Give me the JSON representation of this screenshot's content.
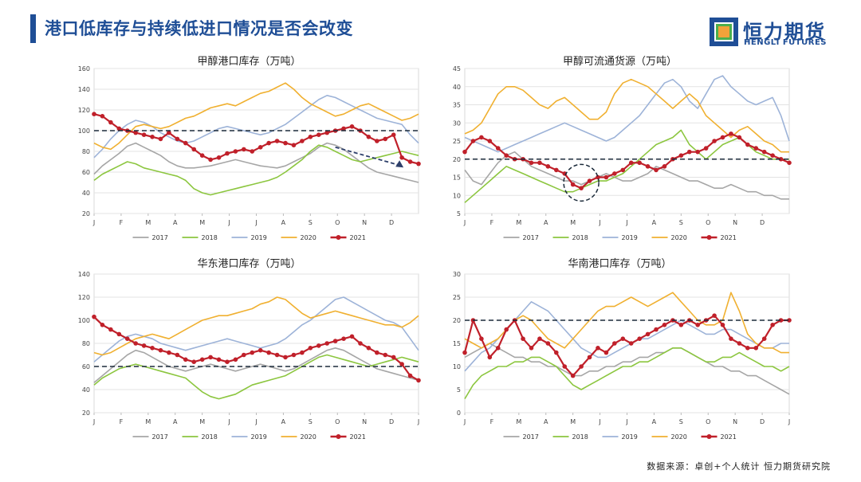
{
  "header": {
    "title": "港口低库存与持续低进口情况是否会改变"
  },
  "logo": {
    "cn": "恒力期货",
    "en": "HENGLI FUTURES",
    "colors": [
      "#f2a23a",
      "#4cae4c",
      "#1f4e96"
    ]
  },
  "footer": {
    "source": "数据来源：卓创+个人统计  恒力期货研究院"
  },
  "series_colors": {
    "2017": "#a6a6a6",
    "2018": "#8cc63f",
    "2019": "#9db3d8",
    "2020": "#f0b030",
    "2021": "#c0202a"
  },
  "chart_data": [
    {
      "type": "line",
      "title": "甲醇港口库存（万吨）",
      "ylim": [
        20,
        160
      ],
      "yticks": [
        20,
        40,
        60,
        80,
        100,
        120,
        140,
        160
      ],
      "xticks": [
        "J",
        "F",
        "M",
        "A",
        "M",
        "J",
        "J",
        "A",
        "S",
        "O",
        "N",
        "D"
      ],
      "ref_line": 100,
      "annotation": "dashed-arrow-down",
      "series": [
        {
          "name": "2017",
          "values": [
            58,
            66,
            72,
            78,
            85,
            88,
            84,
            80,
            76,
            70,
            66,
            64,
            64,
            65,
            66,
            68,
            70,
            72,
            70,
            68,
            66,
            65,
            64,
            66,
            70,
            74,
            78,
            84,
            88,
            86,
            82,
            76,
            70,
            64,
            60,
            58,
            56,
            54,
            52,
            50
          ]
        },
        {
          "name": "2018",
          "values": [
            52,
            58,
            62,
            66,
            70,
            68,
            64,
            62,
            60,
            58,
            56,
            52,
            44,
            40,
            38,
            40,
            42,
            44,
            46,
            48,
            50,
            52,
            55,
            60,
            66,
            72,
            80,
            86,
            84,
            80,
            76,
            72,
            70,
            72,
            74,
            76,
            78,
            80,
            78,
            76
          ]
        },
        {
          "name": "2019",
          "values": [
            74,
            82,
            92,
            100,
            106,
            110,
            108,
            104,
            98,
            94,
            90,
            88,
            90,
            94,
            98,
            102,
            104,
            102,
            100,
            98,
            96,
            98,
            102,
            106,
            112,
            118,
            124,
            130,
            134,
            132,
            128,
            124,
            120,
            116,
            112,
            110,
            108,
            106,
            96,
            88
          ]
        },
        {
          "name": "2020",
          "values": [
            88,
            84,
            82,
            88,
            96,
            104,
            106,
            104,
            102,
            104,
            108,
            112,
            114,
            118,
            122,
            124,
            126,
            124,
            128,
            132,
            136,
            138,
            142,
            146,
            140,
            132,
            126,
            122,
            118,
            114,
            116,
            120,
            124,
            126,
            122,
            118,
            114,
            110,
            112,
            116
          ]
        },
        {
          "name": "2021",
          "marker": true,
          "values": [
            116,
            114,
            108,
            102,
            100,
            98,
            96,
            94,
            92,
            98,
            92,
            88,
            82,
            76,
            72,
            74,
            78,
            80,
            82,
            80,
            84,
            88,
            90,
            88,
            86,
            90,
            94,
            96,
            98,
            100,
            102,
            104,
            100,
            94,
            90,
            92,
            96,
            74,
            70,
            68
          ]
        }
      ]
    },
    {
      "type": "line",
      "title": "甲醇可流通货源（万吨）",
      "ylim": [
        5,
        45
      ],
      "yticks": [
        5,
        10,
        15,
        20,
        25,
        30,
        35,
        40,
        45
      ],
      "xticks": [
        "J",
        "F",
        "M",
        "A",
        "M",
        "J",
        "J",
        "A",
        "S",
        "O",
        "N",
        "D"
      ],
      "ref_line": 20,
      "annotation": "dashed-circle",
      "series": [
        {
          "name": "2017",
          "values": [
            17,
            14,
            13,
            16,
            19,
            21,
            22,
            20,
            18,
            17,
            16,
            15,
            14,
            14,
            13,
            14,
            15,
            16,
            15,
            14,
            14,
            15,
            16,
            18,
            17,
            16,
            15,
            14,
            14,
            13,
            12,
            12,
            13,
            12,
            11,
            11,
            10,
            10,
            9,
            9
          ]
        },
        {
          "name": "2018",
          "values": [
            8,
            10,
            12,
            14,
            16,
            18,
            17,
            16,
            15,
            14,
            13,
            12,
            11,
            11,
            12,
            13,
            14,
            14,
            15,
            16,
            18,
            20,
            22,
            24,
            25,
            26,
            28,
            24,
            22,
            20,
            22,
            24,
            25,
            26,
            24,
            22,
            21,
            20,
            20,
            20
          ]
        },
        {
          "name": "2019",
          "values": [
            26,
            25,
            24,
            23,
            22,
            23,
            24,
            25,
            26,
            27,
            28,
            29,
            30,
            29,
            28,
            27,
            26,
            25,
            26,
            28,
            30,
            32,
            35,
            38,
            41,
            42,
            40,
            36,
            34,
            38,
            42,
            43,
            40,
            38,
            36,
            35,
            36,
            37,
            32,
            25
          ]
        },
        {
          "name": "2020",
          "values": [
            27,
            28,
            30,
            34,
            38,
            40,
            40,
            39,
            37,
            35,
            34,
            36,
            37,
            35,
            33,
            31,
            31,
            33,
            38,
            41,
            42,
            41,
            40,
            38,
            36,
            34,
            36,
            38,
            36,
            32,
            30,
            28,
            26,
            28,
            29,
            27,
            25,
            24,
            22,
            22
          ]
        },
        {
          "name": "2021",
          "marker": true,
          "values": [
            22,
            25,
            26,
            25,
            23,
            21,
            20,
            20,
            19,
            19,
            18,
            17,
            16,
            13,
            12,
            14,
            15,
            15,
            16,
            17,
            19,
            19,
            18,
            17,
            18,
            20,
            21,
            22,
            22,
            23,
            25,
            26,
            27,
            26,
            24,
            23,
            22,
            21,
            20,
            19
          ]
        }
      ]
    },
    {
      "type": "line",
      "title": "华东港口库存（万吨）",
      "ylim": [
        20,
        140
      ],
      "yticks": [
        20,
        40,
        60,
        80,
        100,
        120,
        140
      ],
      "xticks": [
        "J",
        "F",
        "M",
        "A",
        "M",
        "J",
        "J",
        "A",
        "S",
        "O",
        "N",
        "D",
        "J"
      ],
      "ref_line": 60,
      "series": [
        {
          "name": "2017",
          "values": [
            46,
            52,
            58,
            64,
            70,
            74,
            72,
            68,
            64,
            60,
            58,
            56,
            58,
            60,
            62,
            60,
            58,
            56,
            58,
            60,
            62,
            60,
            58,
            56,
            58,
            62,
            66,
            70,
            74,
            76,
            74,
            70,
            66,
            62,
            58,
            56,
            54,
            52,
            50,
            48
          ]
        },
        {
          "name": "2018",
          "values": [
            44,
            50,
            54,
            58,
            60,
            62,
            60,
            58,
            56,
            54,
            52,
            50,
            44,
            38,
            34,
            32,
            34,
            36,
            40,
            44,
            46,
            48,
            50,
            52,
            56,
            60,
            64,
            68,
            70,
            68,
            66,
            64,
            62,
            60,
            62,
            64,
            66,
            68,
            66,
            64
          ]
        },
        {
          "name": "2019",
          "values": [
            64,
            70,
            76,
            82,
            86,
            88,
            86,
            84,
            80,
            78,
            76,
            74,
            76,
            78,
            80,
            82,
            84,
            82,
            80,
            78,
            76,
            78,
            80,
            84,
            90,
            96,
            100,
            106,
            112,
            118,
            120,
            116,
            112,
            108,
            104,
            100,
            98,
            94,
            84,
            74
          ]
        },
        {
          "name": "2020",
          "values": [
            72,
            70,
            72,
            76,
            80,
            84,
            86,
            88,
            86,
            84,
            88,
            92,
            96,
            100,
            102,
            104,
            104,
            106,
            108,
            110,
            114,
            116,
            120,
            118,
            112,
            106,
            102,
            104,
            106,
            108,
            106,
            104,
            102,
            100,
            98,
            96,
            96,
            94,
            98,
            104
          ]
        },
        {
          "name": "2021",
          "marker": true,
          "values": [
            103,
            96,
            92,
            88,
            84,
            80,
            78,
            76,
            74,
            72,
            70,
            66,
            64,
            66,
            68,
            66,
            64,
            66,
            70,
            72,
            74,
            72,
            70,
            68,
            70,
            72,
            76,
            78,
            80,
            82,
            84,
            86,
            80,
            76,
            72,
            70,
            68,
            62,
            52,
            48
          ]
        }
      ]
    },
    {
      "type": "line",
      "title": "华南港口库存（万吨）",
      "ylim": [
        0,
        30
      ],
      "yticks": [
        0,
        5,
        10,
        15,
        20,
        25,
        30
      ],
      "xticks": [
        "J",
        "F",
        "M",
        "A",
        "M",
        "J",
        "J",
        "A",
        "S",
        "O",
        "N",
        "D",
        "J"
      ],
      "ref_line": 20,
      "series": [
        {
          "name": "2017",
          "values": [
            12,
            13,
            14,
            15,
            14,
            13,
            12,
            12,
            11,
            11,
            10,
            10,
            9,
            8,
            8,
            9,
            9,
            10,
            10,
            11,
            11,
            12,
            12,
            13,
            13,
            14,
            14,
            13,
            12,
            11,
            10,
            10,
            9,
            9,
            8,
            8,
            7,
            6,
            5,
            4
          ]
        },
        {
          "name": "2018",
          "values": [
            3,
            6,
            8,
            9,
            10,
            10,
            11,
            11,
            12,
            12,
            11,
            10,
            8,
            6,
            5,
            6,
            7,
            8,
            9,
            10,
            10,
            11,
            11,
            12,
            13,
            14,
            14,
            13,
            12,
            11,
            11,
            12,
            12,
            13,
            12,
            11,
            10,
            10,
            9,
            10
          ]
        },
        {
          "name": "2019",
          "values": [
            9,
            11,
            13,
            14,
            16,
            18,
            20,
            22,
            24,
            23,
            22,
            20,
            18,
            16,
            14,
            13,
            12,
            12,
            13,
            14,
            15,
            16,
            16,
            17,
            18,
            19,
            20,
            19,
            18,
            17,
            17,
            18,
            18,
            17,
            16,
            15,
            14,
            14,
            15,
            15
          ]
        },
        {
          "name": "2020",
          "values": [
            16,
            15,
            14,
            15,
            16,
            18,
            20,
            21,
            20,
            18,
            16,
            15,
            14,
            16,
            18,
            20,
            22,
            23,
            23,
            24,
            25,
            24,
            23,
            24,
            25,
            26,
            24,
            22,
            20,
            19,
            19,
            20,
            26,
            22,
            17,
            15,
            14,
            14,
            13,
            13
          ]
        },
        {
          "name": "2021",
          "marker": true,
          "values": [
            13,
            20,
            16,
            12,
            14,
            18,
            20,
            16,
            14,
            16,
            15,
            13,
            10,
            8,
            10,
            12,
            14,
            13,
            15,
            16,
            15,
            16,
            17,
            18,
            19,
            20,
            19,
            20,
            19,
            20,
            21,
            19,
            16,
            15,
            14,
            14,
            16,
            19,
            20,
            20
          ]
        }
      ]
    }
  ]
}
